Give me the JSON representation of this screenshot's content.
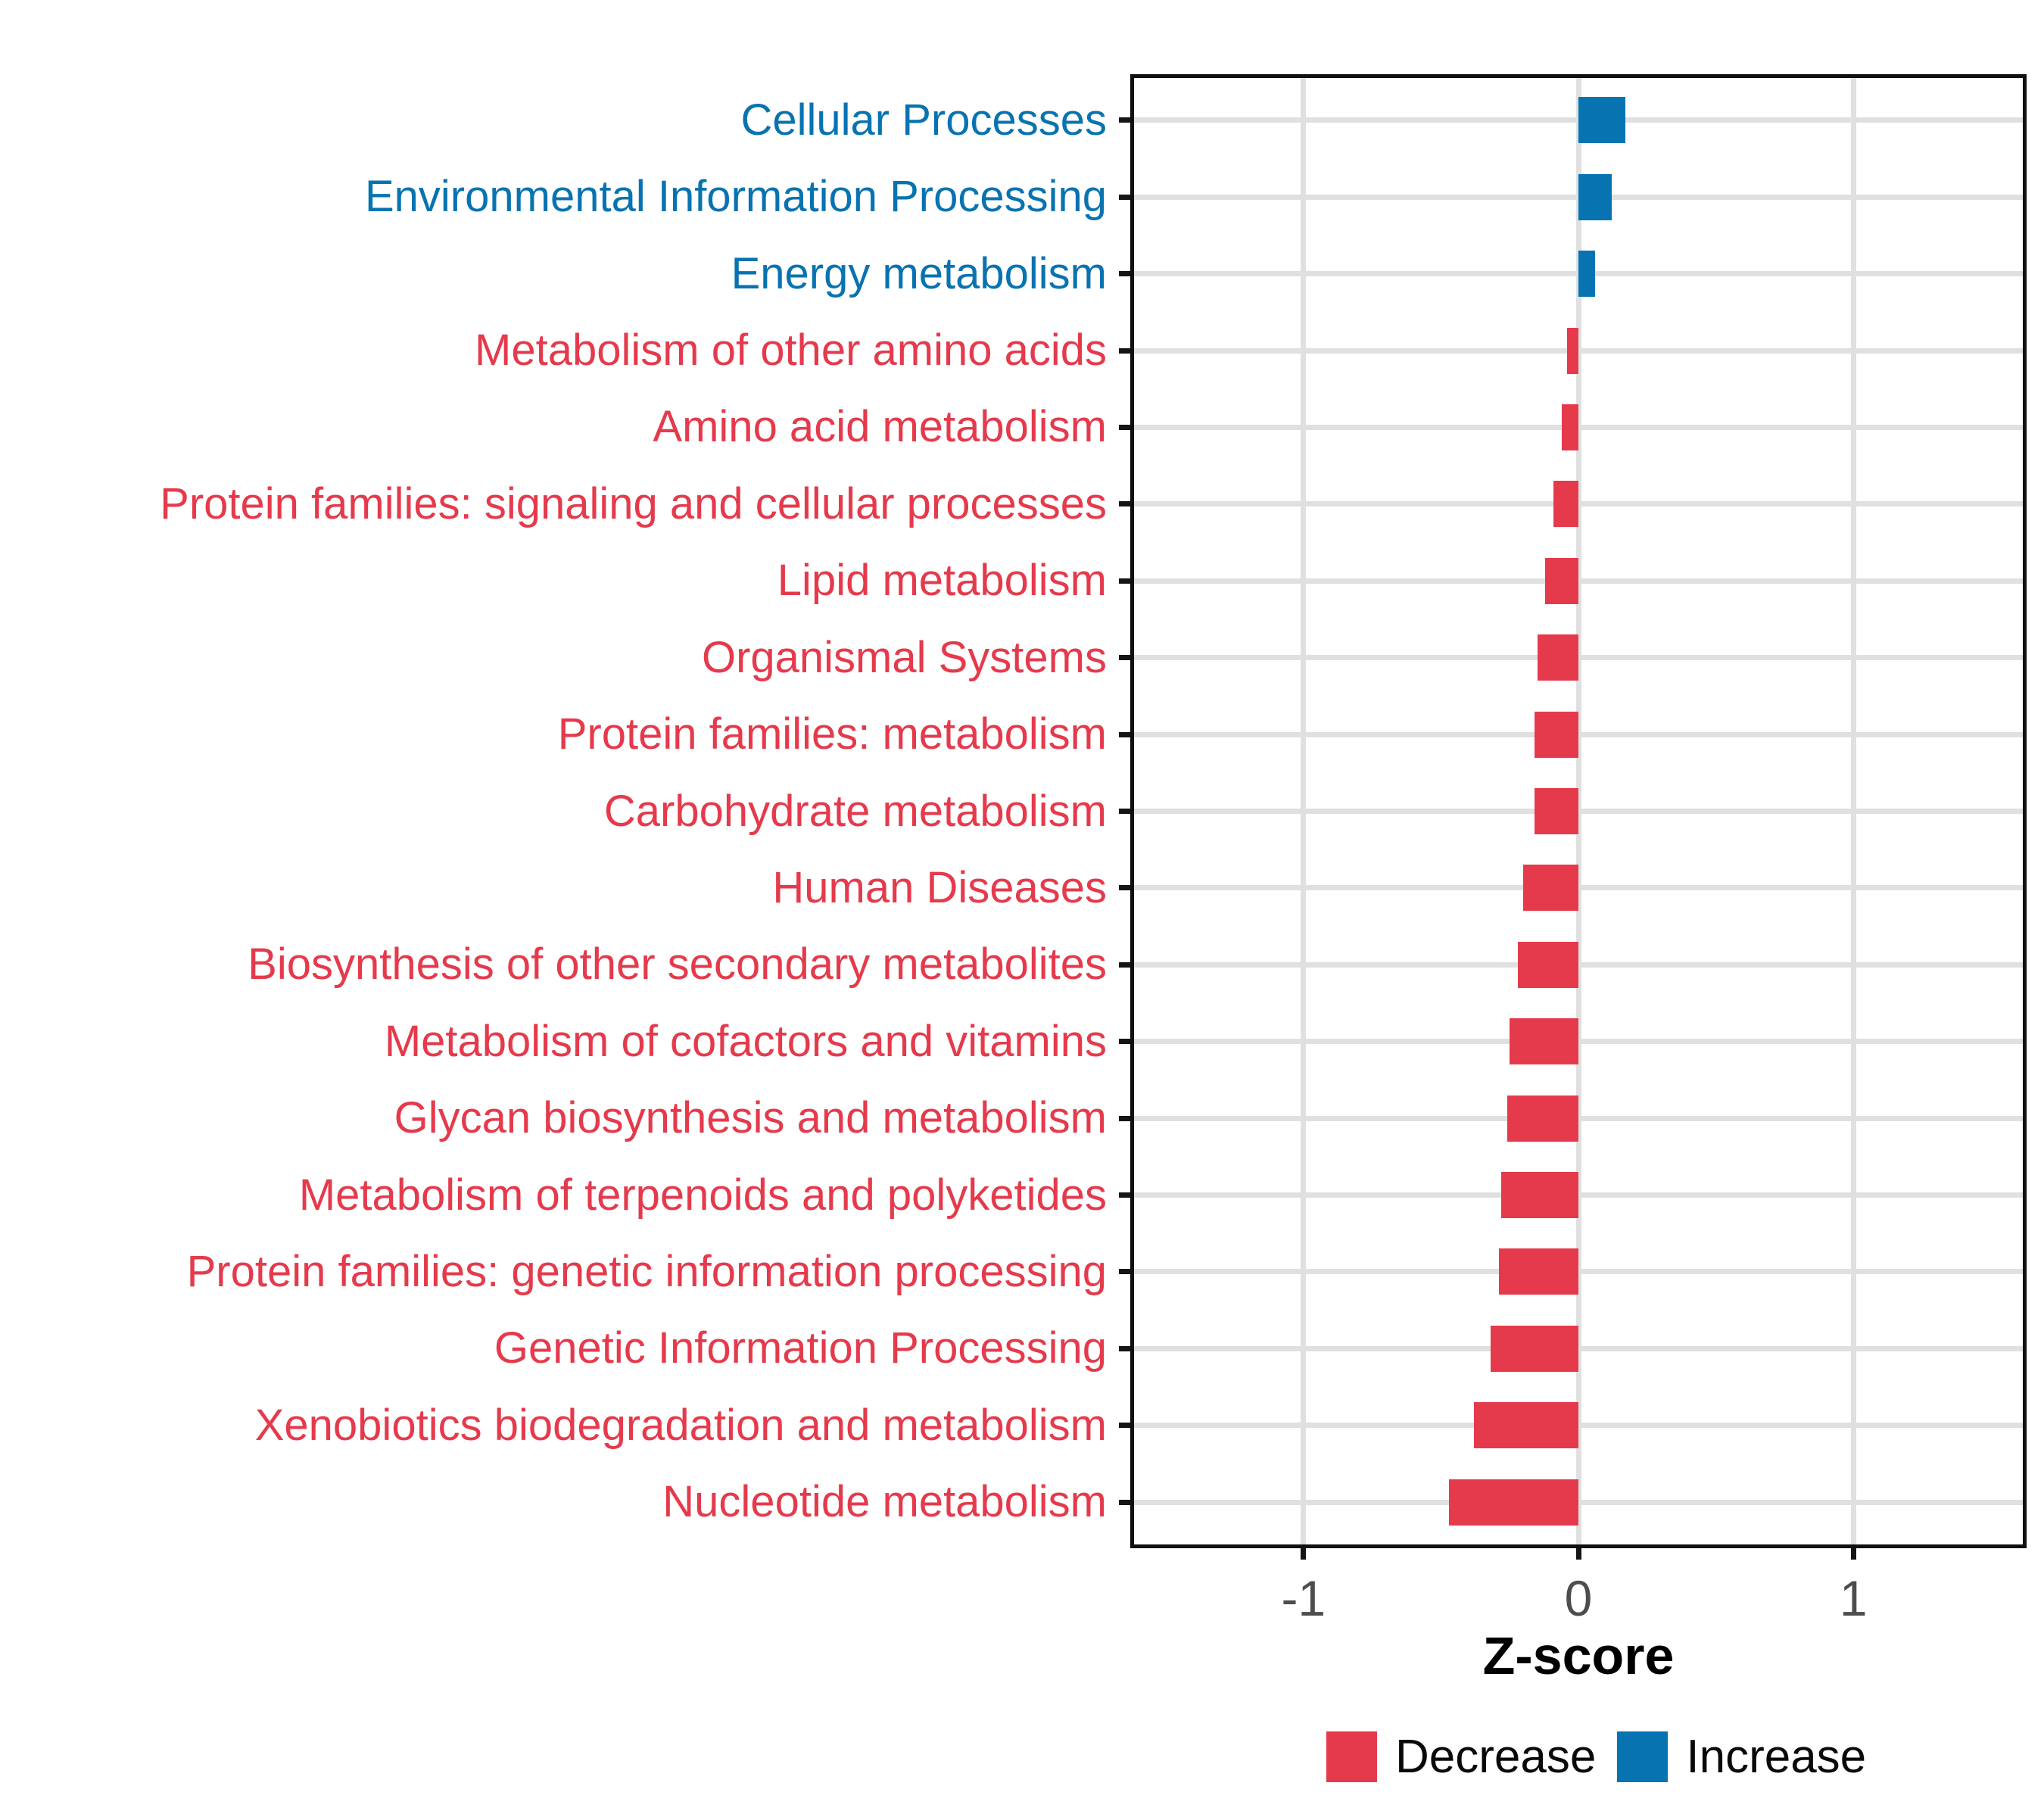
{
  "chart_data": {
    "type": "bar",
    "orientation": "horizontal",
    "title": "",
    "xlabel": "Z-score",
    "ylabel": "",
    "xlim": [
      -1.63,
      1.63
    ],
    "x_ticks": [
      -1,
      0,
      1
    ],
    "x_tick_labels": [
      "-1",
      "0",
      "1"
    ],
    "grid": "major-only",
    "legend_position": "bottom",
    "categories": [
      "Cellular Processes",
      "Environmental Information Processing",
      "Energy metabolism",
      "Metabolism of other amino acids",
      "Amino acid metabolism",
      "Protein families: signaling and cellular processes",
      "Lipid metabolism",
      "Organismal Systems",
      "Protein families: metabolism",
      "Carbohydrate metabolism",
      "Human Diseases",
      "Biosynthesis of other secondary metabolites",
      "Metabolism of cofactors and vitamins",
      "Glycan biosynthesis and metabolism",
      "Metabolism of terpenoids and polyketides",
      "Protein families: genetic information processing",
      "Genetic Information Processing",
      "Xenobiotics biodegradation and metabolism",
      "Nucleotide metabolism"
    ],
    "values": [
      0.17,
      0.12,
      0.06,
      -0.04,
      -0.06,
      -0.09,
      -0.12,
      -0.15,
      -0.16,
      -0.16,
      -0.2,
      -0.22,
      -0.25,
      -0.26,
      -0.28,
      -0.29,
      -0.32,
      -0.38,
      -0.47
    ],
    "directions": [
      "Increase",
      "Increase",
      "Increase",
      "Decrease",
      "Decrease",
      "Decrease",
      "Decrease",
      "Decrease",
      "Decrease",
      "Decrease",
      "Decrease",
      "Decrease",
      "Decrease",
      "Decrease",
      "Decrease",
      "Decrease",
      "Decrease",
      "Decrease",
      "Decrease"
    ],
    "colors": {
      "Decrease": "#e53a4c",
      "Increase": "#0873b1"
    },
    "gridline_color": "#e0e0e0",
    "axis_text_color": "#4d4d4d"
  },
  "legend": {
    "items": [
      {
        "label": "Decrease",
        "color": "#e53a4c"
      },
      {
        "label": "Increase",
        "color": "#0873b1"
      }
    ]
  }
}
